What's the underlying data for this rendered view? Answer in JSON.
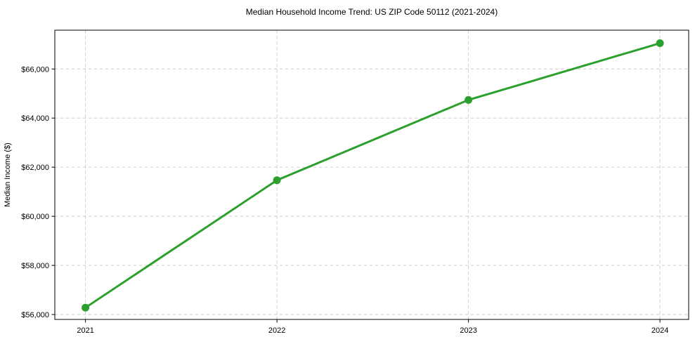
{
  "chart_data": {
    "type": "line",
    "title": "Median Household Income Trend: US ZIP Code 50112 (2021-2024)",
    "xlabel": "",
    "ylabel": "Median Income ($)",
    "x": [
      2021,
      2022,
      2023,
      2024
    ],
    "xticks": [
      "2021",
      "2022",
      "2023",
      "2024"
    ],
    "series": [
      {
        "name": "Median household income",
        "values": [
          56280,
          61470,
          64740,
          67050
        ],
        "color": "#2ca02c"
      }
    ],
    "yticks": [
      56000,
      58000,
      60000,
      62000,
      64000,
      66000
    ],
    "ytick_labels": [
      "$56,000",
      "$58,000",
      "$60,000",
      "$62,000",
      "$64,000",
      "$66,000"
    ],
    "ylim": [
      55800,
      67580
    ],
    "xlim": [
      2020.84,
      2024.15
    ],
    "grid": true,
    "grid_style": "dashed",
    "legend": "none",
    "colors": {
      "line": "#2ca02c",
      "marker": "#2ca02c",
      "grid": "#c9c9c9",
      "spine": "#000000",
      "text": "#000000",
      "background": "#ffffff"
    }
  }
}
